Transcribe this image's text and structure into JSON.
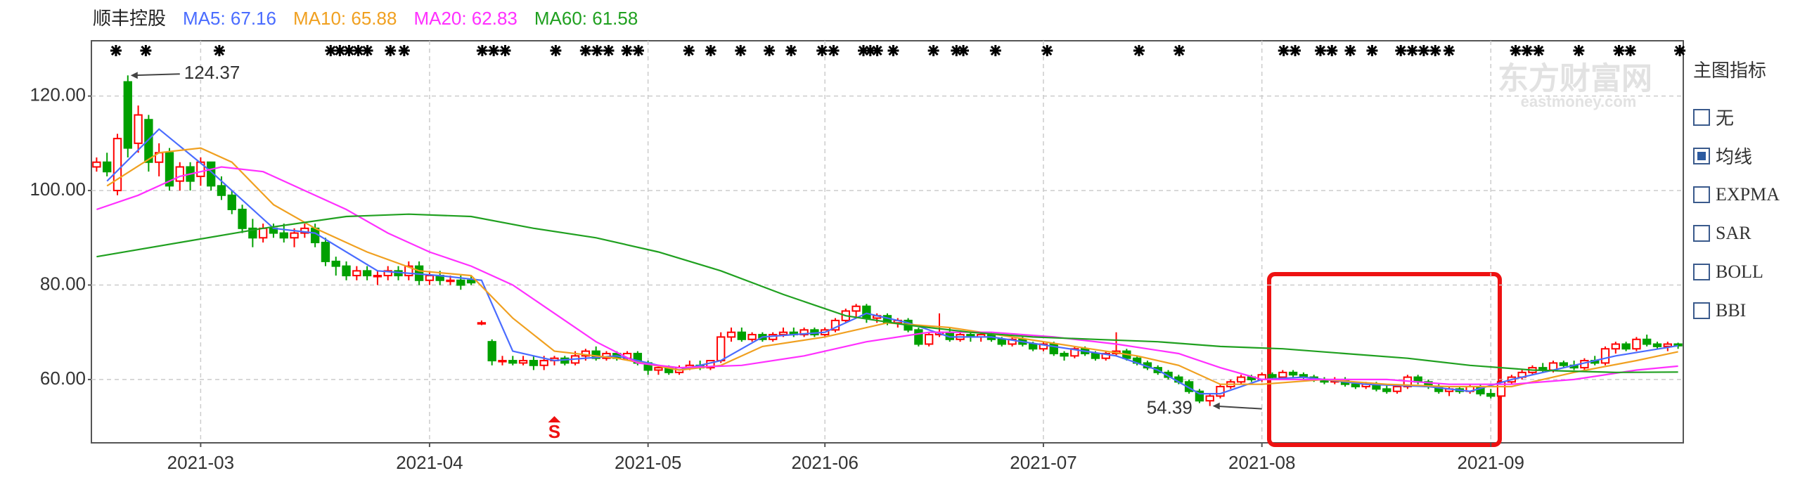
{
  "chart_data": {
    "type": "candlestick",
    "title": "顺丰控股",
    "up_color": "#ff0000",
    "down_color": "#00a000",
    "xlim": [
      -0.5,
      152.5
    ],
    "ylim": [
      46.6,
      131.7
    ],
    "xticks": [
      {
        "value": 10,
        "label": "2021-03"
      },
      {
        "value": 32,
        "label": "2021-04"
      },
      {
        "value": 53,
        "label": "2021-05"
      },
      {
        "value": 70,
        "label": "2021-06"
      },
      {
        "value": 91,
        "label": "2021-07"
      },
      {
        "value": 112,
        "label": "2021-08"
      },
      {
        "value": 134,
        "label": "2021-09"
      }
    ],
    "yticks": [
      {
        "value": 60,
        "label": "60.00"
      },
      {
        "value": 80,
        "label": "80.00"
      },
      {
        "value": 100,
        "label": "100.00"
      },
      {
        "value": 120,
        "label": "120.00"
      }
    ],
    "grid": true,
    "candles": [
      [
        105,
        107,
        104,
        106
      ],
      [
        106,
        108,
        103,
        104
      ],
      [
        100,
        112,
        99,
        111
      ],
      [
        123,
        124.37,
        107,
        109
      ],
      [
        110,
        118,
        108,
        116
      ],
      [
        115,
        116,
        104,
        106
      ],
      [
        106,
        110,
        103,
        108
      ],
      [
        108,
        109,
        100,
        101
      ],
      [
        102,
        106,
        100,
        105
      ],
      [
        105,
        106,
        100,
        102
      ],
      [
        103,
        107,
        101,
        106
      ],
      [
        106,
        106,
        100,
        101
      ],
      [
        101,
        103,
        98,
        99
      ],
      [
        99,
        100,
        95,
        96
      ],
      [
        96,
        97,
        91,
        92
      ],
      [
        92,
        94,
        88,
        90
      ],
      [
        90,
        93,
        89,
        92
      ],
      [
        92,
        93,
        90,
        91
      ],
      [
        91,
        93,
        89,
        90
      ],
      [
        90,
        92,
        88,
        91
      ],
      [
        91,
        93,
        90,
        92
      ],
      [
        92,
        93,
        88,
        89
      ],
      [
        89,
        90,
        84,
        85
      ],
      [
        85,
        86,
        82,
        84
      ],
      [
        84,
        85,
        81,
        82
      ],
      [
        82,
        84,
        81,
        83
      ],
      [
        83,
        84,
        81,
        82
      ],
      [
        82,
        83,
        80,
        82
      ],
      [
        82,
        84,
        81,
        83
      ],
      [
        83,
        84,
        81,
        82
      ],
      [
        82,
        85,
        81,
        84
      ],
      [
        84,
        85,
        80,
        81
      ],
      [
        81,
        83,
        80,
        82
      ],
      [
        82,
        83,
        80,
        81
      ],
      [
        81,
        82,
        80,
        81
      ],
      [
        81,
        82,
        79,
        80
      ],
      [
        81,
        82,
        80,
        80.5
      ],
      [
        72,
        72.5,
        71.5,
        72
      ],
      [
        68,
        68.5,
        63,
        64
      ],
      [
        64,
        65,
        63,
        64
      ],
      [
        64,
        65,
        63,
        63.5
      ],
      [
        63.5,
        65,
        63,
        64
      ],
      [
        64,
        65,
        62,
        63
      ],
      [
        63,
        65,
        62,
        64
      ],
      [
        64,
        65,
        63,
        64.5
      ],
      [
        64.5,
        65,
        63,
        63.5
      ],
      [
        63.5,
        66,
        63,
        65
      ],
      [
        65,
        66.5,
        64,
        66
      ],
      [
        66,
        67,
        64,
        64.5
      ],
      [
        64.5,
        66,
        64,
        65.5
      ],
      [
        65.5,
        66,
        64,
        64.5
      ],
      [
        64.5,
        66,
        64,
        65.5
      ],
      [
        65.5,
        66,
        63,
        63.5
      ],
      [
        63.5,
        64,
        61,
        62
      ],
      [
        62,
        63,
        61,
        62.5
      ],
      [
        62.5,
        63,
        61,
        61.5
      ],
      [
        61.5,
        63,
        61,
        62.5
      ],
      [
        62.5,
        64,
        62,
        63
      ],
      [
        63,
        64,
        62,
        62.5
      ],
      [
        62.5,
        64,
        62,
        64
      ],
      [
        64,
        70,
        63.5,
        69
      ],
      [
        69,
        71,
        68,
        70
      ],
      [
        70,
        71,
        68,
        68.5
      ],
      [
        68.5,
        70,
        68,
        69.5
      ],
      [
        69.5,
        70,
        68,
        68.5
      ],
      [
        68.5,
        70,
        68,
        69.5
      ],
      [
        69.5,
        71,
        69,
        70
      ],
      [
        70,
        71,
        69,
        69.5
      ],
      [
        69.5,
        71,
        69,
        70.5
      ],
      [
        70.5,
        71,
        69,
        69.5
      ],
      [
        69.5,
        71,
        69,
        70.5
      ],
      [
        70.5,
        73,
        70,
        72.5
      ],
      [
        72.5,
        75,
        72,
        74.5
      ],
      [
        74.5,
        76,
        73,
        75.5
      ],
      [
        75.5,
        76,
        72,
        73
      ],
      [
        73,
        74,
        72,
        73.5
      ],
      [
        73.5,
        74,
        71.5,
        72
      ],
      [
        72,
        73,
        71,
        72.5
      ],
      [
        72.5,
        73,
        70,
        70.5
      ],
      [
        70.5,
        71,
        67,
        67.5
      ],
      [
        67.5,
        70,
        67,
        69.5
      ],
      [
        69.5,
        74,
        69,
        70
      ],
      [
        70,
        71,
        68,
        68.5
      ],
      [
        68.5,
        70,
        68,
        69.5
      ],
      [
        69.5,
        70,
        68,
        69
      ],
      [
        69,
        70,
        68,
        69.5
      ],
      [
        69.5,
        70,
        68,
        68.5
      ],
      [
        68.5,
        69,
        67,
        67.5
      ],
      [
        67.5,
        69,
        67,
        68.5
      ],
      [
        68.5,
        69,
        67,
        67.5
      ],
      [
        67.5,
        68,
        66,
        66.5
      ],
      [
        66.5,
        68,
        66,
        67.5
      ],
      [
        67.5,
        68,
        65,
        65.5
      ],
      [
        65.5,
        66,
        64,
        65
      ],
      [
        65,
        67,
        64.5,
        66.5
      ],
      [
        66.5,
        67,
        65,
        65.5
      ],
      [
        65.5,
        66,
        64,
        64.5
      ],
      [
        64.5,
        66,
        64,
        65.5
      ],
      [
        65.5,
        70,
        65,
        66
      ],
      [
        66,
        66.5,
        64,
        64.5
      ],
      [
        64.5,
        65,
        63,
        63.5
      ],
      [
        63.5,
        64,
        62,
        62.5
      ],
      [
        62.5,
        63,
        61,
        61.5
      ],
      [
        61.5,
        62,
        60,
        60.5
      ],
      [
        60.5,
        61,
        59,
        59.5
      ],
      [
        59.5,
        60,
        57,
        57.5
      ],
      [
        57.5,
        58,
        55,
        55.5
      ],
      [
        55.5,
        57,
        54.39,
        56.5
      ],
      [
        56.5,
        59,
        56,
        58.5
      ],
      [
        58.5,
        60,
        58,
        59.5
      ],
      [
        59.5,
        61,
        59,
        60.5
      ],
      [
        60.5,
        61,
        59.5,
        60
      ],
      [
        60,
        61.5,
        59.5,
        61
      ],
      [
        61,
        61.5,
        60,
        60.5
      ],
      [
        60.5,
        62,
        60,
        61.5
      ],
      [
        61.5,
        62,
        60.5,
        61
      ],
      [
        61,
        61.5,
        60,
        60.5
      ],
      [
        60.5,
        61,
        59.5,
        60
      ],
      [
        60,
        60.5,
        59,
        59.5
      ],
      [
        59.5,
        60.5,
        59,
        60
      ],
      [
        60,
        60.5,
        58.5,
        59
      ],
      [
        59,
        59.5,
        58,
        58.5
      ],
      [
        58.5,
        59.5,
        58,
        59
      ],
      [
        59,
        59.5,
        57.5,
        58
      ],
      [
        58,
        59,
        57,
        57.5
      ],
      [
        57.5,
        59,
        57,
        58.5
      ],
      [
        58.5,
        61,
        58,
        60.5
      ],
      [
        60.5,
        61,
        59,
        59.5
      ],
      [
        59.5,
        60,
        58,
        58.5
      ],
      [
        58.5,
        59,
        57,
        57.5
      ],
      [
        57.5,
        58.5,
        56.5,
        58
      ],
      [
        58,
        58.5,
        57,
        57.5
      ],
      [
        57.5,
        59,
        57,
        58.5
      ],
      [
        58.5,
        59,
        56.5,
        57
      ],
      [
        57,
        58,
        56,
        56.5
      ],
      [
        56.5,
        60,
        56,
        59.5
      ],
      [
        59.5,
        61,
        59,
        60.5
      ],
      [
        60.5,
        62,
        60,
        61.5
      ],
      [
        61.5,
        63,
        61,
        62.5
      ],
      [
        62.5,
        63.5,
        61.5,
        62
      ],
      [
        62,
        64,
        61.5,
        63.5
      ],
      [
        63.5,
        64,
        62.5,
        63
      ],
      [
        63,
        64,
        62,
        62.5
      ],
      [
        62.5,
        64.5,
        62,
        64
      ],
      [
        64,
        65,
        63,
        63.5
      ],
      [
        63.5,
        67,
        63,
        66.5
      ],
      [
        66.5,
        68,
        65.5,
        67.5
      ],
      [
        67.5,
        68,
        66,
        66.5
      ],
      [
        66.5,
        69,
        66,
        68.5
      ],
      [
        68.5,
        69.5,
        67,
        67.5
      ],
      [
        67.5,
        68,
        66.5,
        67
      ],
      [
        67,
        68,
        66,
        67.5
      ],
      [
        67.5,
        67.8,
        66.5,
        67.16
      ]
    ],
    "series": [
      {
        "name": "MA5: 67.16",
        "color": "#4a6cff",
        "x": [
          1,
          6,
          11,
          17,
          21,
          27,
          33,
          37,
          40,
          44,
          50,
          56,
          60,
          64,
          70,
          74,
          78,
          82,
          86,
          92,
          98,
          102,
          106,
          108,
          112,
          116,
          122,
          128,
          132,
          136,
          142,
          146,
          152
        ],
        "values": [
          102,
          113,
          104,
          92,
          91,
          83,
          82,
          81,
          66,
          64,
          65,
          62,
          64,
          69,
          70,
          74,
          72,
          69,
          69,
          67,
          65,
          62,
          57,
          57,
          60,
          60.5,
          59,
          58.5,
          57.5,
          60,
          63,
          65,
          67.16
        ]
      },
      {
        "name": "MA10: 65.88",
        "color": "#f0a020",
        "x": [
          1,
          6,
          10,
          13,
          17,
          21,
          26,
          31,
          36,
          40,
          44,
          50,
          56,
          60,
          64,
          70,
          76,
          82,
          88,
          94,
          100,
          104,
          108,
          112,
          118,
          124,
          130,
          136,
          142,
          148,
          152
        ],
        "values": [
          101,
          108,
          109,
          106,
          97,
          92,
          87,
          83,
          82,
          73,
          66,
          64.5,
          62,
          63,
          67,
          69,
          72,
          71,
          69,
          67,
          65,
          63,
          59,
          59,
          60,
          59,
          58.5,
          58.5,
          61.5,
          64,
          65.88
        ]
      },
      {
        "name": "MA20: 62.83",
        "color": "#ff30ff",
        "x": [
          0,
          4,
          8,
          12,
          16,
          20,
          24,
          28,
          32,
          36,
          40,
          44,
          48,
          52,
          56,
          62,
          68,
          74,
          80,
          86,
          92,
          98,
          104,
          108,
          112,
          118,
          124,
          130,
          136,
          142,
          148,
          152
        ],
        "values": [
          96,
          99,
          103,
          105,
          104,
          100,
          96,
          91,
          87,
          84,
          80,
          74,
          68,
          63.5,
          62.5,
          63,
          65,
          68,
          70,
          70,
          69,
          67.5,
          65.5,
          62.5,
          60,
          60,
          60,
          59,
          59,
          60,
          62,
          62.83
        ]
      },
      {
        "name": "MA60: 61.58",
        "color": "#20a020",
        "x": [
          0,
          8,
          16,
          24,
          30,
          36,
          42,
          48,
          54,
          60,
          66,
          72,
          78,
          84,
          90,
          96,
          102,
          108,
          114,
          120,
          126,
          132,
          138,
          146,
          152
        ],
        "values": [
          86,
          89,
          92,
          94.5,
          95,
          94.5,
          92,
          90,
          87,
          83,
          78,
          73.5,
          71.5,
          70,
          69,
          68.5,
          68,
          67,
          66.5,
          65.5,
          64.5,
          63,
          62,
          61.5,
          61.58
        ]
      }
    ],
    "annotations": [
      {
        "label": "124.37",
        "value": 124.37,
        "x": 3
      },
      {
        "label": "54.39",
        "value": 54.39,
        "x": 107
      }
    ],
    "signal": {
      "label": "S",
      "x": 44
    },
    "watermark": {
      "title": "东方财富网",
      "subtitle": "eastmoney.com"
    }
  },
  "indicator_panel": {
    "title": "主图指标",
    "options": [
      {
        "label": "无",
        "checked": false
      },
      {
        "label": "均线",
        "checked": true
      },
      {
        "label": "EXPMA",
        "checked": false
      },
      {
        "label": "SAR",
        "checked": false
      },
      {
        "label": "BOLL",
        "checked": false
      },
      {
        "label": "BBI",
        "checked": false
      }
    ]
  }
}
